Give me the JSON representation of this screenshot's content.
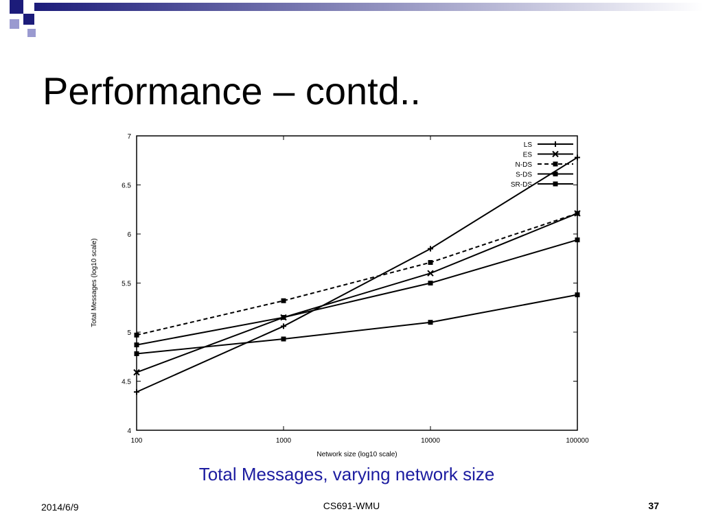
{
  "slide": {
    "title": "Performance – contd..",
    "caption": "Total Messages, varying network size",
    "footer": {
      "date": "2014/6/9",
      "course": "CS691-WMU",
      "page": "37"
    }
  },
  "chart_data": {
    "type": "line",
    "x_label": "Network size (log10 scale)",
    "y_label": "Total Messages (log10 scale)",
    "x": [
      100,
      1000,
      10000,
      100000
    ],
    "xscale": "log",
    "xlim": [
      100,
      100000
    ],
    "xticks": [
      100,
      1000,
      10000,
      100000
    ],
    "ylim": [
      4,
      7
    ],
    "yticks": [
      4,
      4.5,
      5,
      5.5,
      6,
      6.5,
      7
    ],
    "legend": "top-right",
    "series": [
      {
        "name": "LS",
        "color": "#000000",
        "marker": "plus",
        "line_style": "solid",
        "values": [
          4.39,
          5.06,
          5.85,
          6.78
        ]
      },
      {
        "name": "ES",
        "color": "#000000",
        "marker": "x",
        "line_style": "solid",
        "values": [
          4.59,
          5.15,
          5.6,
          6.21
        ]
      },
      {
        "name": "N-DS",
        "color": "#000000",
        "marker": "square",
        "line_style": "dashed",
        "values": [
          4.97,
          5.32,
          5.71,
          6.21
        ]
      },
      {
        "name": "S-DS",
        "color": "#000000",
        "marker": "square",
        "line_style": "solid",
        "values": [
          4.87,
          5.15,
          5.5,
          5.94
        ]
      },
      {
        "name": "SR-DS",
        "color": "#000000",
        "marker": "square",
        "line_style": "solid",
        "values": [
          4.78,
          4.93,
          5.1,
          5.38
        ]
      }
    ]
  }
}
